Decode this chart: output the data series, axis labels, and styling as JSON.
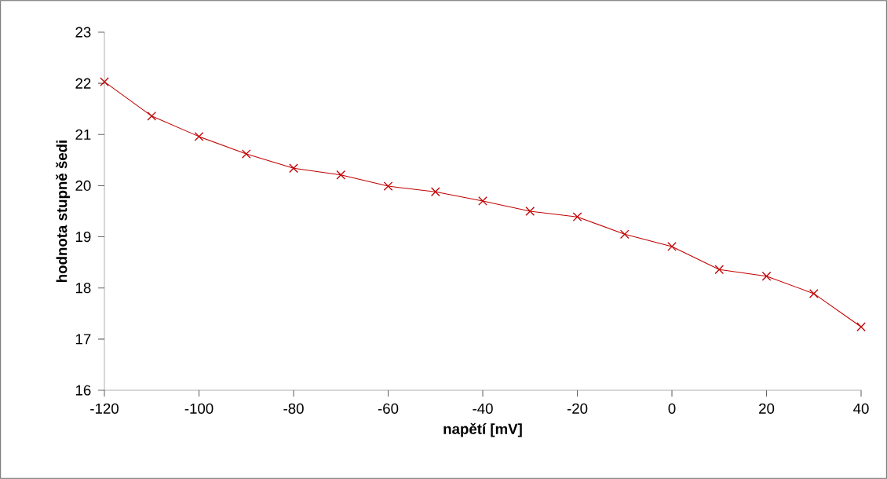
{
  "chart_data": {
    "type": "line",
    "xlabel": "napětí [mV]",
    "ylabel": "hodnota stupně šedi",
    "x": [
      -120,
      -110,
      -100,
      -90,
      -80,
      -70,
      -60,
      -50,
      -40,
      -30,
      -20,
      -10,
      0,
      10,
      20,
      30,
      40
    ],
    "series": [
      {
        "color": "#c00000",
        "values": [
          22.03,
          21.36,
          20.96,
          20.62,
          20.34,
          20.21,
          19.99,
          19.88,
          19.7,
          19.5,
          19.39,
          19.05,
          18.81,
          18.36,
          18.23,
          17.89,
          17.24
        ]
      }
    ],
    "marker": "cross",
    "line_style": "solid",
    "xlim": [
      -120,
      40
    ],
    "ylim": [
      16,
      23
    ],
    "xticks": [
      -120,
      -100,
      -80,
      -60,
      -40,
      -20,
      0,
      20,
      40
    ],
    "yticks": [
      16,
      17,
      18,
      19,
      20,
      21,
      22,
      23
    ]
  }
}
